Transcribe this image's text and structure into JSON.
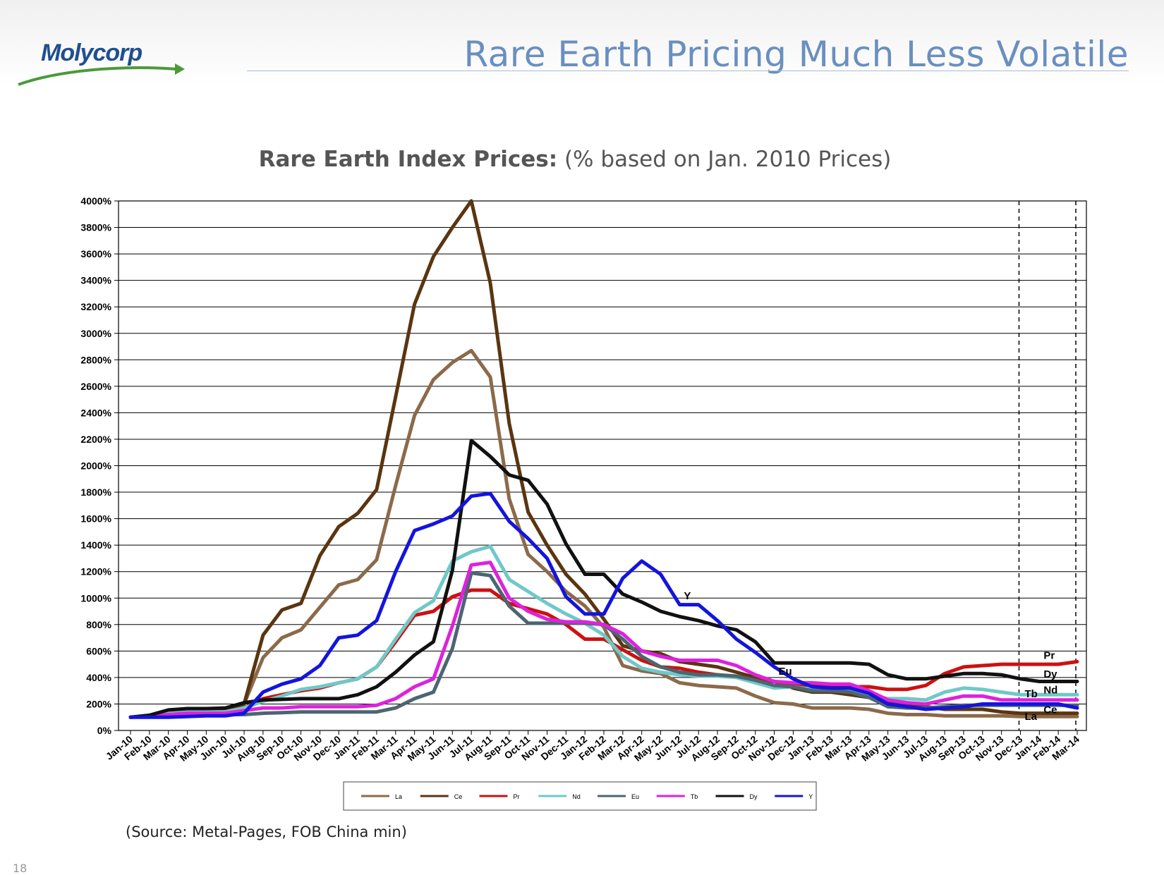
{
  "header": {
    "logo_text": "Molycorp",
    "slide_title": "Rare Earth Pricing Much Less Volatile"
  },
  "footer": {
    "source": "(Source:  Metal-Pages, FOB China min)",
    "page_number": "18"
  },
  "colors": {
    "logo_blue": "#1f4f8f",
    "logo_green": "#4a9a3a",
    "title_blue": "#6a8fc0"
  },
  "chart_data": {
    "type": "line",
    "title_bold": "Rare Earth Index Prices:",
    "title_rest": " (% based on Jan. 2010 Prices)",
    "xlabel": "",
    "ylabel": "",
    "ylim": [
      0,
      4000
    ],
    "ytick_step": 200,
    "ytick_suffix": "%",
    "grid": true,
    "legend": "bottom",
    "x": [
      "Jan-10",
      "Feb-10",
      "Mar-10",
      "Apr-10",
      "May-10",
      "Jun-10",
      "Jul-10",
      "Aug-10",
      "Sep-10",
      "Oct-10",
      "Nov-10",
      "Dec-10",
      "Jan-11",
      "Feb-11",
      "Mar-11",
      "Apr-11",
      "May-11",
      "Jun-11",
      "Jul-11",
      "Aug-11",
      "Sep-11",
      "Oct-11",
      "Nov-11",
      "Dec-11",
      "Jan-12",
      "Feb-12",
      "Mar-12",
      "Apr-12",
      "May-12",
      "Jun-12",
      "Jul-12",
      "Aug-12",
      "Sep-12",
      "Oct-12",
      "Nov-12",
      "Dec-12",
      "Jan-13",
      "Feb-13",
      "Mar-13",
      "Apr-13",
      "May-13",
      "Jun-13",
      "Jul-13",
      "Aug-13",
      "Sep-13",
      "Oct-13",
      "Nov-13",
      "Dec-13",
      "Jan-14",
      "Feb-14",
      "Mar-14"
    ],
    "dashed_lines_at": [
      "Dec-13",
      "Mar-14"
    ],
    "series": [
      {
        "name": "La",
        "color": "#8b6a4a",
        "width": 5,
        "values": [
          100,
          110,
          130,
          140,
          140,
          140,
          200,
          550,
          700,
          760,
          930,
          1100,
          1140,
          1290,
          1850,
          2380,
          2650,
          2780,
          2870,
          2670,
          1750,
          1330,
          1200,
          1050,
          940,
          780,
          490,
          450,
          430,
          360,
          340,
          330,
          320,
          260,
          210,
          200,
          170,
          170,
          170,
          160,
          130,
          120,
          120,
          110,
          110,
          110,
          110,
          105,
          105,
          105,
          105
        ]
      },
      {
        "name": "Ce",
        "color": "#5a3510",
        "width": 5,
        "values": [
          100,
          110,
          140,
          150,
          150,
          150,
          200,
          720,
          910,
          960,
          1320,
          1540,
          1640,
          1820,
          2520,
          3220,
          3580,
          3800,
          4000,
          3380,
          2320,
          1650,
          1400,
          1180,
          1030,
          840,
          640,
          600,
          580,
          520,
          500,
          480,
          440,
          400,
          370,
          320,
          290,
          290,
          270,
          250,
          220,
          200,
          180,
          160,
          160,
          160,
          140,
          130,
          130,
          130,
          130
        ]
      },
      {
        "name": "Pr",
        "color": "#cc1111",
        "width": 5,
        "values": [
          100,
          110,
          130,
          140,
          140,
          140,
          170,
          240,
          270,
          300,
          320,
          360,
          390,
          480,
          670,
          870,
          900,
          1010,
          1060,
          1060,
          960,
          920,
          880,
          800,
          690,
          690,
          610,
          530,
          480,
          470,
          440,
          420,
          410,
          380,
          370,
          350,
          340,
          340,
          330,
          330,
          310,
          310,
          340,
          430,
          480,
          490,
          500,
          500,
          500,
          500,
          520
        ]
      },
      {
        "name": "Nd",
        "color": "#70c8c8",
        "width": 5,
        "values": [
          100,
          110,
          130,
          140,
          140,
          140,
          170,
          220,
          260,
          310,
          330,
          360,
          390,
          480,
          690,
          890,
          980,
          1280,
          1350,
          1390,
          1140,
          1050,
          960,
          880,
          810,
          720,
          560,
          470,
          440,
          420,
          410,
          410,
          400,
          360,
          320,
          330,
          310,
          310,
          300,
          270,
          240,
          240,
          230,
          290,
          320,
          310,
          290,
          270,
          270,
          270,
          270
        ]
      },
      {
        "name": "Eu",
        "color": "#4b6672",
        "width": 5,
        "values": [
          100,
          105,
          110,
          115,
          120,
          120,
          120,
          130,
          135,
          140,
          140,
          140,
          140,
          140,
          170,
          240,
          290,
          620,
          1190,
          1170,
          940,
          810,
          810,
          810,
          810,
          800,
          690,
          560,
          480,
          440,
          420,
          420,
          410,
          380,
          340,
          330,
          300,
          300,
          290,
          250,
          180,
          170,
          170,
          180,
          190,
          190,
          190,
          190,
          190,
          190,
          190
        ]
      },
      {
        "name": "Tb",
        "color": "#dd22dd",
        "width": 5,
        "values": [
          100,
          110,
          120,
          130,
          130,
          130,
          150,
          170,
          170,
          180,
          180,
          180,
          180,
          190,
          240,
          330,
          390,
          790,
          1250,
          1270,
          1000,
          900,
          840,
          820,
          820,
          800,
          730,
          600,
          560,
          530,
          530,
          530,
          490,
          420,
          370,
          360,
          360,
          350,
          350,
          300,
          230,
          210,
          200,
          230,
          260,
          260,
          230,
          230,
          230,
          230,
          230
        ]
      },
      {
        "name": "Dy",
        "color": "#111111",
        "width": 5,
        "values": [
          100,
          115,
          155,
          165,
          165,
          170,
          210,
          230,
          235,
          240,
          240,
          240,
          270,
          330,
          440,
          570,
          670,
          1210,
          2190,
          2070,
          1930,
          1890,
          1710,
          1410,
          1180,
          1180,
          1030,
          970,
          900,
          860,
          830,
          790,
          760,
          670,
          510,
          510,
          510,
          510,
          510,
          500,
          420,
          390,
          390,
          410,
          430,
          430,
          420,
          390,
          370,
          370,
          370
        ]
      },
      {
        "name": "Y",
        "color": "#1414dd",
        "width": 5,
        "values": [
          100,
          100,
          100,
          105,
          110,
          110,
          130,
          290,
          350,
          390,
          490,
          700,
          720,
          830,
          1200,
          1510,
          1560,
          1620,
          1770,
          1790,
          1580,
          1450,
          1300,
          1010,
          880,
          880,
          1150,
          1280,
          1180,
          950,
          950,
          830,
          690,
          590,
          480,
          390,
          330,
          320,
          320,
          280,
          200,
          180,
          160,
          170,
          180,
          200,
          200,
          200,
          200,
          200,
          170
        ]
      }
    ],
    "annotations": [
      {
        "text": "Y",
        "x": "Jun-12",
        "y": 990
      },
      {
        "text": "Eu",
        "x": "Nov-12",
        "y": 420
      },
      {
        "text": "Pr",
        "x": "Jan-14",
        "y": 540
      },
      {
        "text": "Dy",
        "x": "Jan-14",
        "y": 400
      },
      {
        "text": "Tb",
        "x": "Dec-13",
        "y": 250
      },
      {
        "text": "Nd",
        "x": "Jan-14",
        "y": 280
      },
      {
        "text": "Ce",
        "x": "Jan-14",
        "y": 130
      },
      {
        "text": "La",
        "x": "Dec-13",
        "y": 80
      }
    ]
  }
}
